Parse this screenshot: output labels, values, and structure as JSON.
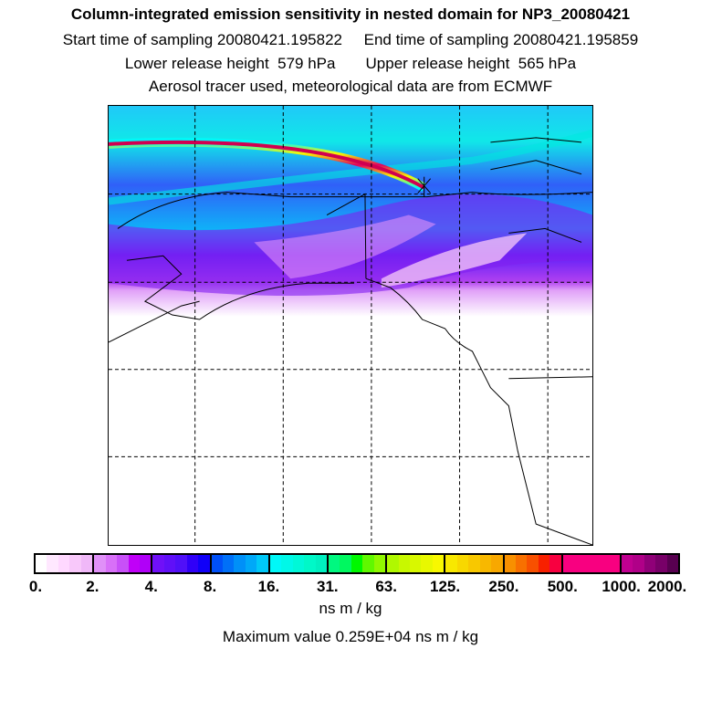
{
  "header": {
    "title": "Column-integrated emission sensitivity in nested domain for NP3_20080421",
    "line2": "Start time of sampling 20080421.195822     End time of sampling 20080421.195859",
    "line3": "Lower release height  579 hPa       Upper release height  565 hPa",
    "line4": "Aerosol tracer used, meteorological data are from ECMWF"
  },
  "colorbar": {
    "tick_labels": [
      "0.",
      "2.",
      "4.",
      "8.",
      "16.",
      "31.",
      "63.",
      "125.",
      "250.",
      "500.",
      "1000.",
      "2000."
    ],
    "segments": [
      [
        "#ffffff",
        "#ffe8ff",
        "#ffd8ff",
        "#f8c8fa",
        "#f0b8f8"
      ],
      [
        "#e090f8",
        "#d870f8",
        "#c850f8",
        "#c000f8",
        "#b000f8"
      ],
      [
        "#7010f8",
        "#6010f8",
        "#5010f8",
        "#3000f8",
        "#1000f8"
      ],
      [
        "#0050f8",
        "#0070f8",
        "#0090f8",
        "#00a8f8",
        "#00c8f8"
      ],
      [
        "#00f8f8",
        "#00f8e8",
        "#00f8d8",
        "#00f8c8",
        "#00f0c0"
      ],
      [
        "#00f880",
        "#00f860",
        "#00f800",
        "#60f800",
        "#90f800"
      ],
      [
        "#b0f800",
        "#c8f800",
        "#d8f800",
        "#e8f800",
        "#f8f800"
      ],
      [
        "#f8e800",
        "#f8d800",
        "#f8c800",
        "#f8b800",
        "#f8a800"
      ],
      [
        "#f89000",
        "#f87000",
        "#f85000",
        "#f82000",
        "#f80040"
      ],
      [
        "#f80080",
        "#f80080",
        "#f80080",
        "#f80080",
        "#f80080"
      ],
      [
        "#c00090",
        "#b00088",
        "#900078",
        "#780068",
        "#580050"
      ]
    ],
    "unit": "ns m / kg",
    "max_value": "Maximum value  0.259E+04 ns m / kg"
  }
}
